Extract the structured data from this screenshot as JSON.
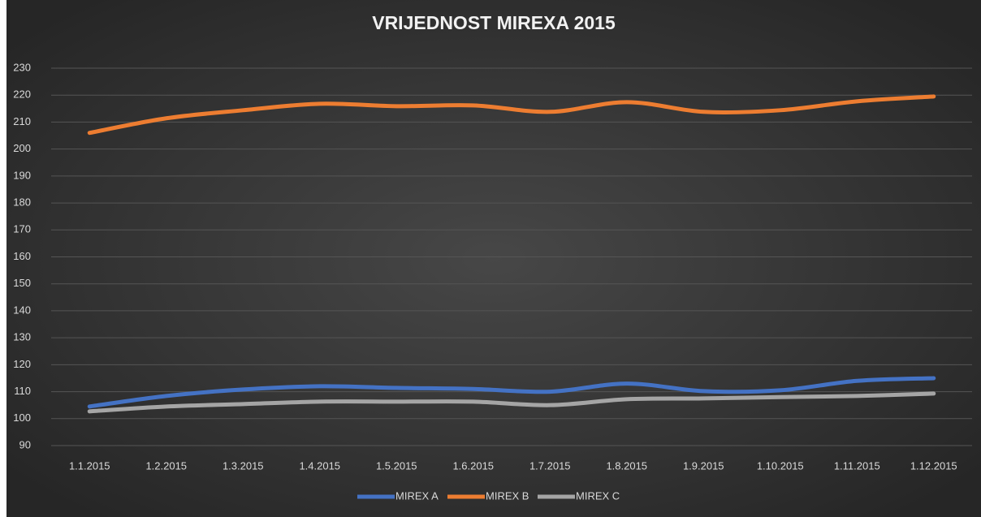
{
  "chart_data": {
    "type": "line",
    "title": "VRIJEDNOST MIREXA 2015",
    "categories": [
      "1.1.2015",
      "1.2.2015",
      "1.3.2015",
      "1.4.2015",
      "1.5.2015",
      "1.6.2015",
      "1.7.2015",
      "1.8.2015",
      "1.9.2015",
      "1.10.2015",
      "1.11.2015",
      "1.12.2015"
    ],
    "series": [
      {
        "name": "MIREX A",
        "color": "#4472c4",
        "values": [
          104.5,
          108.4,
          110.8,
          112,
          111.4,
          111,
          110,
          113,
          110.2,
          110.5,
          114,
          115
        ]
      },
      {
        "name": "MIREX B",
        "color": "#ed7d31",
        "values": [
          206,
          211.4,
          214.4,
          216.8,
          215.9,
          216.2,
          213.8,
          217.4,
          213.8,
          214.4,
          217.7,
          219.5
        ]
      },
      {
        "name": "MIREX C",
        "color": "#a5a5a5",
        "values": [
          102.7,
          104.5,
          105.4,
          106.3,
          106.3,
          106.3,
          105,
          107.2,
          107.5,
          108,
          108.4,
          109.3
        ]
      }
    ],
    "ylim": [
      90,
      230
    ],
    "yticks": [
      90,
      100,
      110,
      120,
      130,
      140,
      150,
      160,
      170,
      180,
      190,
      200,
      210,
      220,
      230
    ],
    "grid": true,
    "legend": "bottom"
  }
}
